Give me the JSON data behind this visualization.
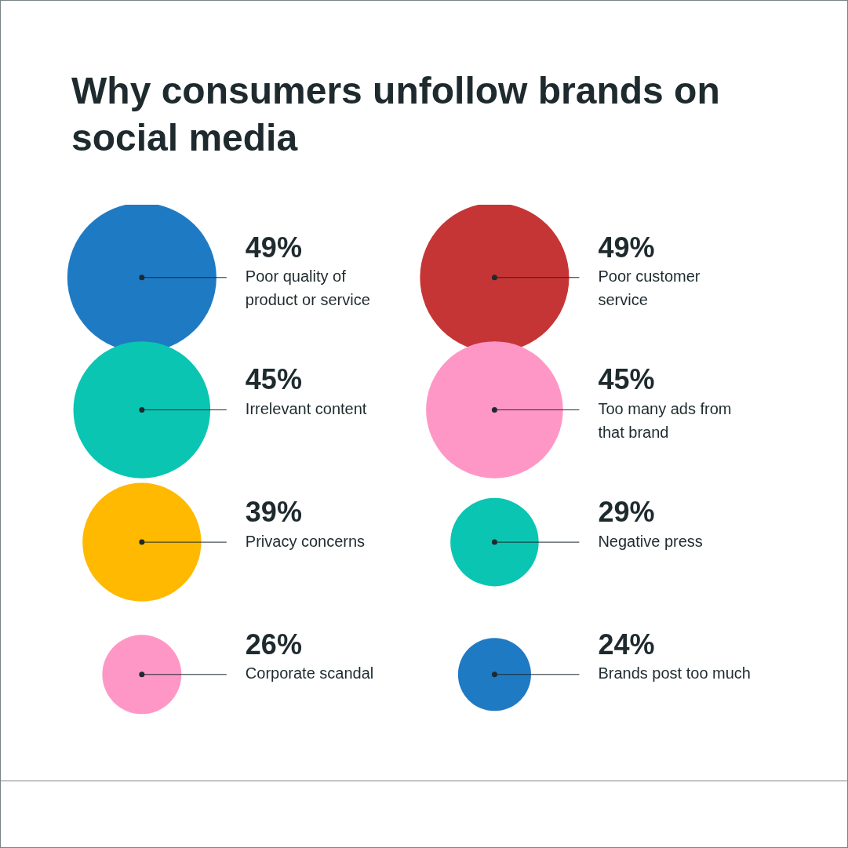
{
  "chart_data": {
    "type": "other",
    "title": "Why consumers unfollow brands on social media",
    "categories": [
      "Poor quality of product or service",
      "Poor customer service",
      "Irrelevant content",
      "Too many ads from that brand",
      "Privacy concerns",
      "Negative press",
      "Corporate scandal",
      "Brands post too much"
    ],
    "values": [
      49,
      49,
      45,
      45,
      39,
      29,
      26,
      24
    ],
    "value_labels": [
      "49%",
      "49%",
      "45%",
      "45%",
      "39%",
      "29%",
      "26%",
      "24%"
    ],
    "colors": [
      "#1f7ac4",
      "#c63535",
      "#0ac5b2",
      "#ff97c6",
      "#ffb900",
      "#0ac5b2",
      "#ff97c6",
      "#1f7ac4"
    ]
  }
}
